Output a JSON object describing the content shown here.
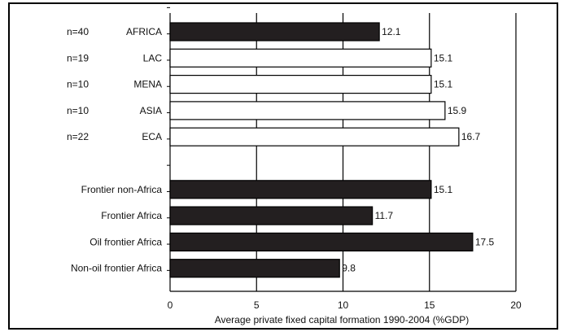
{
  "chart_data": {
    "type": "bar",
    "orientation": "horizontal",
    "categories": [
      "AFRICA",
      "LAC",
      "MENA",
      "ASIA",
      "ECA",
      "",
      "Frontier non-Africa",
      "Frontier Africa",
      "Oil frontier Africa",
      "Non-oil frontier Africa"
    ],
    "sample_sizes": [
      "n=40",
      "n=19",
      "n=10",
      "n=10",
      "n=22",
      "",
      "",
      "",
      "",
      ""
    ],
    "values": [
      12.1,
      15.1,
      15.1,
      15.9,
      16.7,
      null,
      15.1,
      11.7,
      17.5,
      9.8
    ],
    "value_labels": [
      "12.1",
      "15.1",
      "15.1",
      "15.9",
      "16.7",
      "",
      "15.1",
      "11.7",
      "17.5",
      "9.8"
    ],
    "bar_fill": [
      "black",
      "white",
      "white",
      "white",
      "white",
      "",
      "black",
      "black",
      "black",
      "black"
    ],
    "xlabel": "Average private fixed capital formation 1990-2004 (%GDP)",
    "xlim": [
      0,
      20
    ],
    "xticks": [
      0,
      5,
      10,
      15,
      20
    ],
    "grid": "vertical",
    "colors": {
      "dark": "#231f20",
      "light": "#ffffff",
      "grid": "#000000"
    }
  }
}
